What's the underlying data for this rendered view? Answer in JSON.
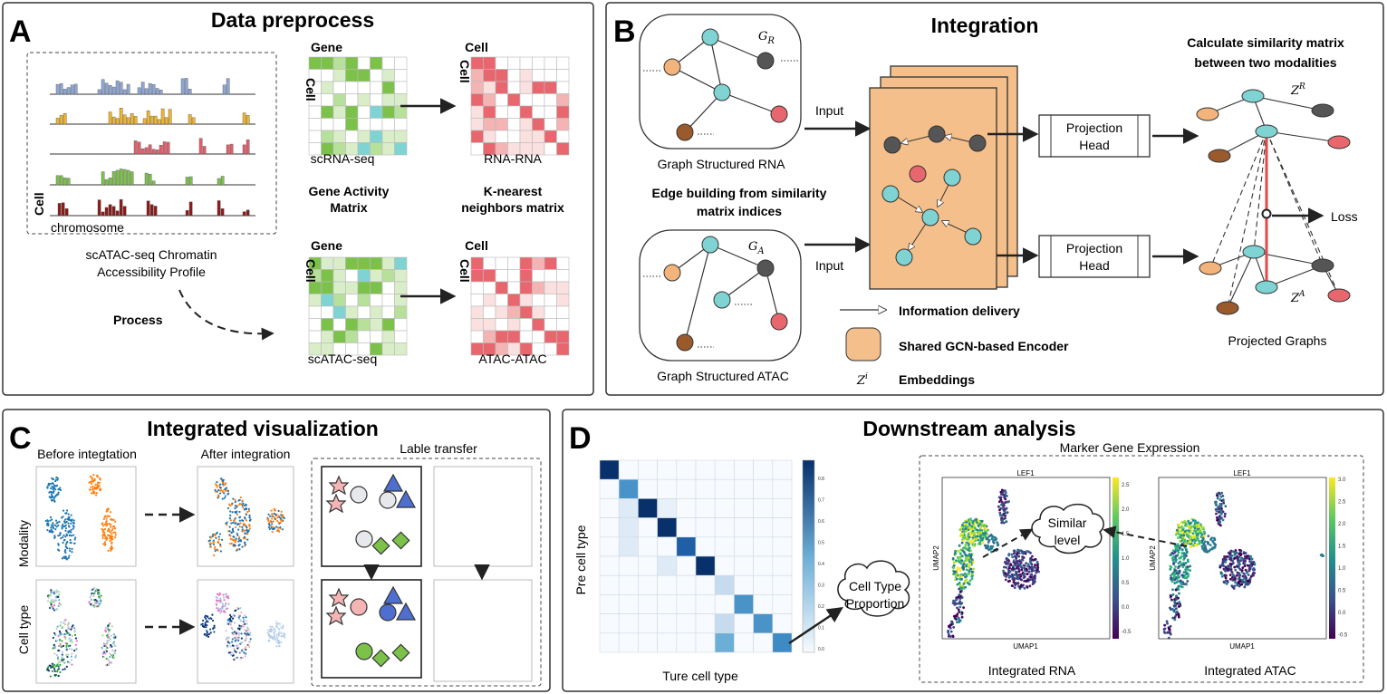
{
  "panels": {
    "A": {
      "letter": "A",
      "title": "Data preprocess",
      "cell_axis": "Cell",
      "chromosome": "chromosome",
      "profile_label": [
        "scATAC-seq Chromatin",
        "Accessibility Profile"
      ],
      "process": "Process",
      "gene": "Gene",
      "cell": "Cell",
      "scrna": "scRNA-seq",
      "scatac": "scATAC-seq",
      "gene_activity": [
        "Gene Activity",
        "Matrix"
      ],
      "rna_rna": "RNA-RNA",
      "atac_atac": "ATAC-ATAC",
      "knn": [
        "K-nearest",
        "neighbors matrix"
      ]
    },
    "B": {
      "letter": "B",
      "title": "Integration",
      "graph_rna": "Graph Structured RNA",
      "graph_atac": "Graph Structured ATAC",
      "edge_building": [
        "Edge building from similarity",
        "matrix indices"
      ],
      "input": "Input",
      "projection_head": [
        "Projection",
        "Head"
      ],
      "similarity": [
        "Calculate similarity matrix",
        "between two modalities"
      ],
      "loss": "Loss",
      "projected_graphs": "Projected Graphs",
      "legend_info": "Information delivery",
      "legend_encoder": "Shared GCN-based Encoder",
      "legend_embed": "Embeddings",
      "g_r_base": "G",
      "g_r_sub": "R",
      "g_a_base": "G",
      "g_a_sub": "A",
      "z_r_base": "Z",
      "z_r_sup": "R",
      "z_a_base": "Z",
      "z_a_sup": "A",
      "z_i_base": "Z",
      "z_i_sup": "i"
    },
    "C": {
      "letter": "C",
      "title": "Integrated visualization",
      "before": "Before integtation",
      "after": "After integration",
      "label_transfer": "Lable transfer",
      "row_modality": "Modality",
      "row_celltype": "Cell type"
    },
    "D": {
      "letter": "D",
      "title": "Downstream analysis",
      "pre_cell_type": "Pre cell type",
      "true_cell_type": "Ture cell type",
      "cloud_proportion": [
        "Cell Type",
        "Proportion"
      ],
      "marker": "Marker Gene Expression",
      "cloud_similar": [
        "Similar",
        "level"
      ],
      "lef1": "LEF1",
      "umap1": "UMAP1",
      "umap2": "UMAP2",
      "integrated_rna": "Integrated RNA",
      "integrated_atac": "Integrated ATAC",
      "heat_ticks": [
        "0.8",
        "0.7",
        "0.6",
        "0.5",
        "0.4",
        "0.3",
        "0.2",
        "0.1",
        "0.0"
      ],
      "rna_ticks": [
        "2.5",
        "2.0",
        "1.5",
        "1.0",
        "0.5",
        "0.0",
        "-0.5"
      ],
      "atac_ticks": [
        "3.0",
        "2.5",
        "2.0",
        "1.5",
        "1.0",
        "0.5",
        "0.0",
        "-0.5"
      ]
    }
  },
  "colors": {
    "rna_green": "#7cc24a",
    "atac_teal": "#7fd3d3",
    "knn_red": "#e8676e",
    "encoder": "#f4bf8a",
    "node_orange": "#f2b47a",
    "node_gray": "#555555",
    "node_red": "#e8676e",
    "node_brown": "#9a5a2c",
    "loss_line": "#e34a4a",
    "heat_dark": "#08306b"
  }
}
